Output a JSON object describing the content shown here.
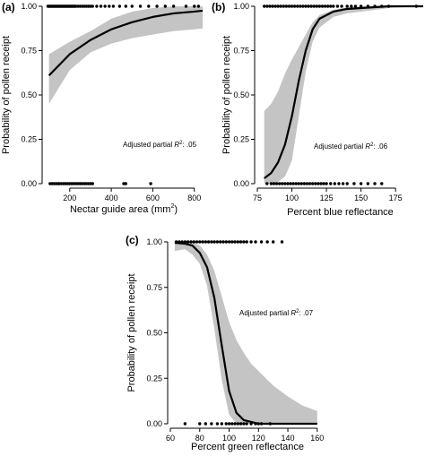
{
  "chart_data": [
    {
      "panel_label": "(a)",
      "type": "line",
      "xlabel": "Nectar guide area (mm",
      "xlabel_sup": "2",
      "xlabel_tail": ")",
      "ylabel": "Probability of pollen receipt",
      "xlim": [
        80,
        840
      ],
      "ylim": [
        0,
        1
      ],
      "xticks": [
        200,
        400,
        600,
        800
      ],
      "yticks": [
        "0.00",
        "0.25",
        "0.50",
        "0.75",
        "1.00"
      ],
      "annotation": {
        "prefix": "Adjusted partial ",
        "var": "R",
        "sup": "2",
        "suffix": ": .05"
      },
      "fit": {
        "x": [
          100,
          200,
          300,
          400,
          500,
          600,
          700,
          800,
          840
        ],
        "y": [
          0.61,
          0.73,
          0.81,
          0.87,
          0.91,
          0.94,
          0.96,
          0.97,
          0.975
        ],
        "lower": [
          0.45,
          0.64,
          0.74,
          0.79,
          0.82,
          0.84,
          0.86,
          0.87,
          0.875
        ],
        "upper": [
          0.73,
          0.8,
          0.86,
          0.93,
          0.97,
          0.99,
          1.0,
          1.0,
          1.0
        ]
      },
      "points_at_1": [
        95,
        100,
        105,
        110,
        115,
        120,
        125,
        130,
        135,
        140,
        145,
        150,
        155,
        160,
        165,
        170,
        175,
        180,
        185,
        190,
        195,
        200,
        205,
        210,
        215,
        220,
        225,
        230,
        240,
        250,
        260,
        270,
        280,
        290,
        300,
        310,
        330,
        350,
        370,
        390,
        410,
        440,
        470,
        500,
        540,
        580,
        620,
        660,
        700,
        760,
        800,
        820
      ],
      "points_at_0": [
        105,
        115,
        125,
        135,
        145,
        150,
        160,
        170,
        180,
        190,
        200,
        210,
        220,
        230,
        240,
        250,
        260,
        270,
        280,
        290,
        300,
        310,
        460,
        470,
        590
      ]
    },
    {
      "panel_label": "(b)",
      "type": "line",
      "xlabel": "Percent blue reflectance",
      "ylabel": "Probability of pollen receipt",
      "xlim": [
        75,
        195
      ],
      "ylim": [
        0,
        1
      ],
      "xticks": [
        75,
        100,
        125,
        150,
        175
      ],
      "yticks": [
        "0.00",
        "0.25",
        "0.50",
        "0.75",
        "1.00"
      ],
      "annotation": {
        "prefix": "Adjusted partial ",
        "var": "R",
        "sup": "2",
        "suffix": ": .06"
      },
      "fit": {
        "x": [
          80,
          85,
          90,
          95,
          100,
          105,
          110,
          115,
          120,
          130,
          140,
          150,
          170,
          195
        ],
        "y": [
          0.03,
          0.06,
          0.12,
          0.22,
          0.38,
          0.58,
          0.75,
          0.87,
          0.93,
          0.97,
          0.985,
          0.99,
          1.0,
          1.0
        ],
        "lower": [
          0.0,
          0.0,
          0.01,
          0.04,
          0.13,
          0.38,
          0.63,
          0.8,
          0.88,
          0.94,
          0.96,
          0.97,
          0.99,
          1.0
        ],
        "upper": [
          0.41,
          0.45,
          0.52,
          0.62,
          0.7,
          0.77,
          0.84,
          0.91,
          0.95,
          0.98,
          0.995,
          1.0,
          1.0,
          1.0
        ]
      },
      "points_at_1": [
        80,
        82,
        84,
        86,
        88,
        90,
        92,
        94,
        96,
        98,
        100,
        102,
        104,
        106,
        108,
        110,
        112,
        114,
        116,
        118,
        120,
        122,
        124,
        126,
        128,
        130,
        133,
        136,
        140,
        143,
        146,
        150,
        155,
        160,
        165,
        170,
        190
      ],
      "points_at_0": [
        82,
        85,
        87,
        89,
        91,
        93,
        95,
        97,
        99,
        101,
        103,
        105,
        107,
        109,
        111,
        113,
        115,
        117,
        119,
        121,
        123,
        125,
        128,
        131,
        134,
        137,
        140,
        145,
        150,
        155,
        160,
        165
      ]
    },
    {
      "panel_label": "(c)",
      "type": "line",
      "xlabel": "Percent green reflectance",
      "ylabel": "Probability of pollen receipt",
      "xlim": [
        60,
        165
      ],
      "ylim": [
        0,
        1
      ],
      "xticks": [
        60,
        80,
        100,
        120,
        140,
        160
      ],
      "yticks": [
        "0.00",
        "0.25",
        "0.50",
        "0.75",
        "1.00"
      ],
      "annotation": {
        "prefix": "Adjusted partial ",
        "var": "R",
        "sup": "2",
        "suffix": ": .07"
      },
      "fit": {
        "x": [
          63,
          70,
          75,
          80,
          85,
          90,
          95,
          100,
          105,
          110,
          115,
          120,
          130,
          140,
          150,
          160
        ],
        "y": [
          0.995,
          0.99,
          0.98,
          0.94,
          0.86,
          0.69,
          0.43,
          0.18,
          0.06,
          0.02,
          0.01,
          0.0,
          0.0,
          0.0,
          0.0,
          0.0
        ],
        "lower": [
          0.95,
          0.96,
          0.93,
          0.88,
          0.76,
          0.52,
          0.24,
          0.05,
          0.0,
          0.0,
          0.0,
          0.0,
          0.0,
          0.0,
          0.0,
          0.0
        ],
        "upper": [
          1.0,
          1.0,
          1.0,
          0.98,
          0.93,
          0.84,
          0.7,
          0.56,
          0.46,
          0.39,
          0.33,
          0.29,
          0.21,
          0.15,
          0.1,
          0.07
        ]
      },
      "points_at_1": [
        64,
        66,
        68,
        70,
        72,
        74,
        76,
        78,
        80,
        82,
        84,
        86,
        88,
        90,
        92,
        94,
        96,
        98,
        100,
        102,
        104,
        106,
        108,
        110,
        112,
        115,
        118,
        122,
        126,
        130,
        136
      ],
      "points_at_0": [
        70,
        80,
        84,
        88,
        92,
        95,
        98,
        100,
        102,
        104,
        106,
        108,
        110,
        112,
        115,
        118,
        120,
        122,
        128
      ]
    }
  ]
}
